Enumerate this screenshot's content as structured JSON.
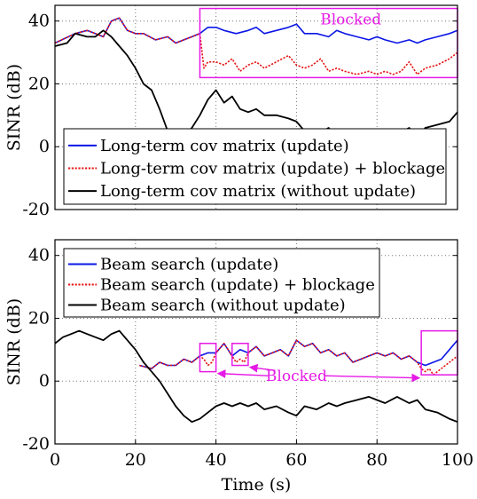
{
  "colors": {
    "blue": "#0b16e6",
    "red": "#e61515",
    "black": "#000000",
    "magenta": "#e619e6",
    "grid": "#777777"
  },
  "chart_data": [
    {
      "type": "line",
      "ylabel": "SINR (dB)",
      "xlim": [
        0,
        100
      ],
      "ylim": [
        -20,
        45
      ],
      "yticks": [
        -20,
        0,
        20,
        40
      ],
      "grid": true,
      "legend_position": "bottom-left",
      "annotation": "Blocked",
      "blocked_regions": [
        {
          "x": [
            36,
            100
          ],
          "y": [
            22,
            44
          ]
        }
      ],
      "series": [
        {
          "name": "Long-term cov matrix (update)",
          "color": "#0b16e6",
          "dash": "solid",
          "x": [
            0,
            5,
            8,
            10,
            12,
            14,
            16,
            18,
            20,
            22,
            25,
            28,
            30,
            32,
            34,
            36,
            38,
            40,
            42,
            45,
            48,
            50,
            52,
            55,
            58,
            60,
            62,
            65,
            68,
            70,
            72,
            75,
            78,
            80,
            82,
            85,
            88,
            90,
            92,
            95,
            98,
            100
          ],
          "y": [
            33,
            36,
            37,
            36,
            35,
            40,
            41,
            37,
            36,
            36,
            34,
            35,
            33,
            34,
            35,
            36,
            38,
            38,
            37,
            36,
            37,
            38,
            36,
            37,
            38,
            39,
            36,
            36,
            35,
            37,
            36,
            35,
            34,
            35,
            34,
            33,
            34,
            33,
            34,
            35,
            36,
            37
          ]
        },
        {
          "name": "Long-term cov matrix (update) + blockage",
          "color": "#e61515",
          "dash": "dotted",
          "x": [
            0,
            5,
            8,
            10,
            12,
            14,
            16,
            18,
            20,
            22,
            25,
            28,
            30,
            32,
            34,
            36,
            37,
            38,
            40,
            42,
            44,
            46,
            48,
            50,
            52,
            55,
            58,
            60,
            62,
            64,
            66,
            68,
            70,
            72,
            75,
            78,
            80,
            82,
            84,
            86,
            88,
            90,
            92,
            95,
            98,
            100
          ],
          "y": [
            33,
            36,
            37,
            36,
            35,
            40,
            41,
            37,
            36,
            36,
            34,
            35,
            33,
            34,
            35,
            36,
            25,
            27,
            27,
            26,
            28,
            24,
            26,
            27,
            25,
            27,
            29,
            26,
            25,
            26,
            28,
            24,
            25,
            24,
            23,
            24,
            23,
            24,
            23,
            24,
            27,
            23,
            25,
            26,
            28,
            30
          ]
        },
        {
          "name": "Long-term cov matrix (without update)",
          "color": "#000000",
          "dash": "solid",
          "x": [
            0,
            3,
            5,
            8,
            10,
            12,
            14,
            16,
            18,
            20,
            22,
            24,
            26,
            28,
            30,
            32,
            34,
            36,
            38,
            40,
            42,
            44,
            46,
            48,
            50,
            52,
            55,
            58,
            60,
            62,
            65,
            68,
            70,
            72,
            75,
            78,
            80,
            82,
            85,
            88,
            90,
            92,
            95,
            98,
            100
          ],
          "y": [
            32,
            33,
            36,
            35,
            35,
            37,
            35,
            32,
            29,
            25,
            20,
            18,
            12,
            5,
            0,
            3,
            6,
            10,
            15,
            18,
            14,
            16,
            12,
            11,
            12,
            10,
            10,
            9,
            8,
            5,
            4,
            6,
            3,
            4,
            5,
            5,
            4,
            3,
            4,
            6,
            3,
            6,
            7,
            8,
            11
          ]
        }
      ]
    },
    {
      "type": "line",
      "xlabel": "Time (s)",
      "ylabel": "SINR (dB)",
      "xlim": [
        0,
        100
      ],
      "ylim": [
        -20,
        45
      ],
      "xticks": [
        0,
        20,
        40,
        60,
        80,
        100
      ],
      "yticks": [
        -20,
        0,
        20,
        40
      ],
      "grid": true,
      "legend_position": "top-left",
      "annotation": "Blocked",
      "blocked_regions": [
        {
          "x": [
            36,
            40
          ],
          "y": [
            3,
            12
          ]
        },
        {
          "x": [
            44,
            48
          ],
          "y": [
            5,
            12
          ]
        },
        {
          "x": [
            91,
            100
          ],
          "y": [
            2,
            16
          ]
        }
      ],
      "series": [
        {
          "name": "Beam search (update)",
          "color": "#0b16e6",
          "dash": "solid",
          "x": [
            21,
            24,
            26,
            28,
            30,
            32,
            34,
            36,
            38,
            40,
            42,
            44,
            46,
            48,
            50,
            52,
            54,
            56,
            58,
            60,
            62,
            64,
            66,
            68,
            70,
            72,
            74,
            76,
            78,
            80,
            82,
            84,
            86,
            88,
            90,
            92,
            94,
            96,
            98,
            100
          ],
          "y": [
            5,
            4,
            6,
            5,
            5,
            7,
            6,
            8,
            9,
            9,
            12,
            8,
            10,
            9,
            11,
            8,
            9,
            10,
            8,
            13,
            11,
            12,
            9,
            10,
            8,
            9,
            6,
            7,
            8,
            9,
            8,
            9,
            7,
            8,
            6,
            5,
            6,
            7,
            10,
            13
          ]
        },
        {
          "name": "Beam search (update) + blockage",
          "color": "#e61515",
          "dash": "dotted",
          "x": [
            21,
            24,
            26,
            28,
            30,
            32,
            34,
            36,
            37,
            38,
            39,
            40,
            42,
            44,
            45,
            46,
            47,
            48,
            50,
            52,
            54,
            56,
            58,
            60,
            62,
            64,
            66,
            68,
            70,
            72,
            74,
            76,
            78,
            80,
            82,
            84,
            86,
            88,
            90,
            91,
            92,
            93,
            94,
            95,
            96,
            97,
            98,
            99,
            100
          ],
          "y": [
            5,
            4,
            6,
            5,
            5,
            7,
            6,
            8,
            7,
            5,
            6,
            9,
            12,
            8,
            6,
            7,
            6,
            9,
            11,
            8,
            9,
            10,
            8,
            13,
            11,
            12,
            9,
            10,
            8,
            9,
            6,
            7,
            8,
            9,
            8,
            9,
            7,
            8,
            6,
            4,
            3,
            4,
            2,
            3,
            4,
            5,
            6,
            7,
            8
          ]
        },
        {
          "name": "Beam search (without update)",
          "color": "#000000",
          "dash": "solid",
          "x": [
            0,
            2,
            4,
            6,
            8,
            10,
            12,
            14,
            16,
            18,
            20,
            22,
            24,
            26,
            28,
            30,
            32,
            34,
            36,
            38,
            40,
            42,
            44,
            46,
            48,
            50,
            52,
            55,
            58,
            60,
            62,
            65,
            68,
            70,
            72,
            75,
            78,
            80,
            82,
            85,
            88,
            90,
            92,
            95,
            98,
            100
          ],
          "y": [
            12,
            14,
            15,
            16,
            15,
            14,
            13,
            15,
            16,
            13,
            10,
            6,
            3,
            0,
            -4,
            -8,
            -11,
            -13,
            -12,
            -10,
            -8,
            -7,
            -8,
            -7,
            -8,
            -7,
            -9,
            -8,
            -10,
            -11,
            -8,
            -9,
            -7,
            -8,
            -7,
            -6,
            -5,
            -6,
            -7,
            -5,
            -7,
            -6,
            -9,
            -10,
            -12,
            -13
          ]
        }
      ]
    }
  ]
}
